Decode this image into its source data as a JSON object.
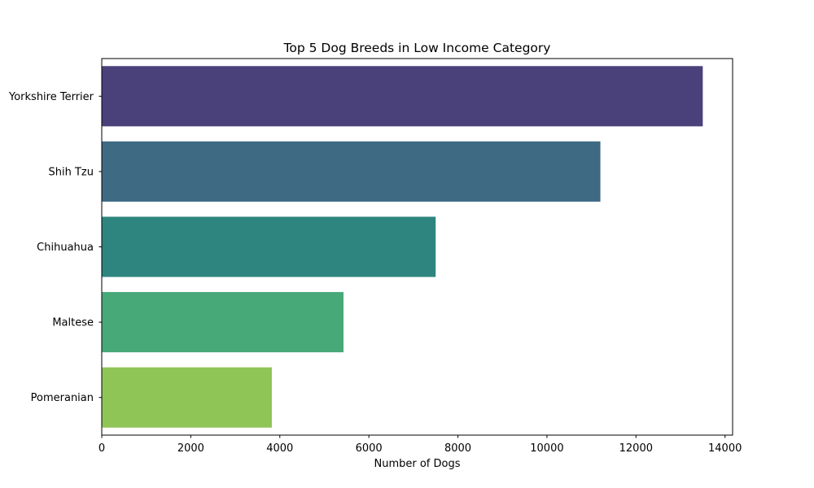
{
  "chart_data": {
    "type": "bar",
    "orientation": "horizontal",
    "title": "Top 5 Dog Breeds in Low Income Category",
    "xlabel": "Number of Dogs",
    "ylabel": "",
    "categories": [
      "Yorkshire Terrier",
      "Shih Tzu",
      "Chihuahua",
      "Maltese",
      "Pomeranian"
    ],
    "values": [
      13500,
      11200,
      7500,
      5430,
      3820
    ],
    "colors": [
      "#4a417a",
      "#3e6a84",
      "#2e857f",
      "#47a878",
      "#8fc457"
    ],
    "xlim": [
      0,
      14170
    ],
    "xticks": [
      0,
      2000,
      4000,
      6000,
      8000,
      10000,
      12000,
      14000
    ],
    "grid": false,
    "legend": "none"
  }
}
